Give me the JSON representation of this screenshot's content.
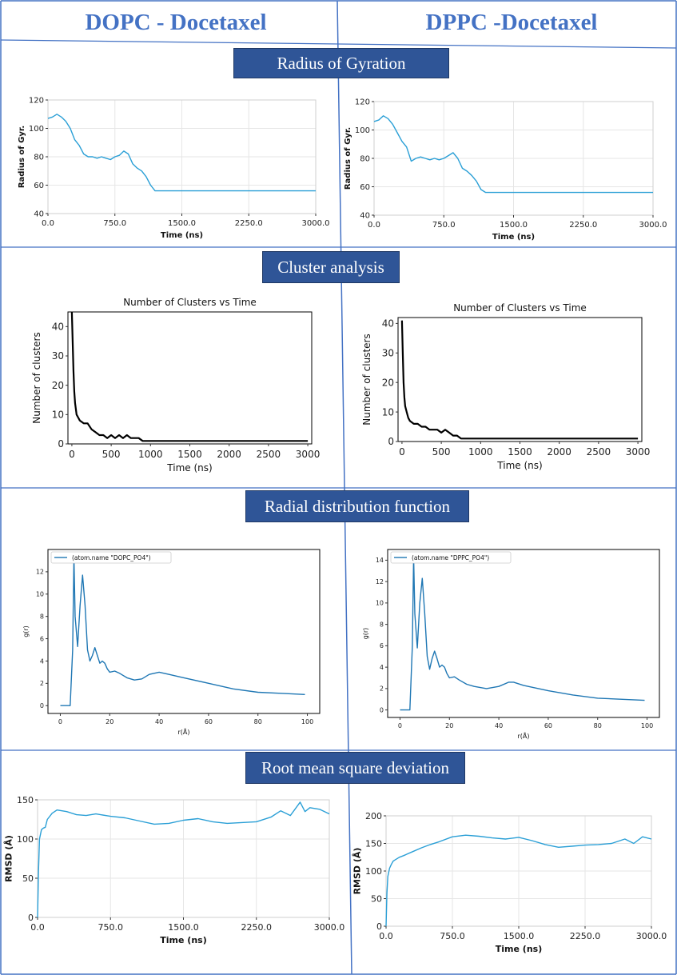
{
  "header": {
    "left_title": "DOPC - Docetaxel",
    "right_title": "DPPC -Docetaxel"
  },
  "sections": [
    {
      "label": "Radius of Gyration"
    },
    {
      "label": "Cluster analysis"
    },
    {
      "label": "Radial distribution function"
    },
    {
      "label": "Root mean square deviation"
    }
  ],
  "colors": {
    "title_blue": "#4472c4",
    "banner": "#2f5597",
    "line_blue": "#2a9fd6",
    "black": "#000000",
    "divider": "#4472c4"
  },
  "chart_data": [
    {
      "id": "rg-dopc",
      "type": "line",
      "title": "",
      "xlabel": "Time (ns)",
      "ylabel": "Radius of Gyr.",
      "xlim": [
        0,
        3000
      ],
      "ylim": [
        40,
        120
      ],
      "xticks": [
        0,
        750,
        1500,
        2250,
        3000
      ],
      "xtick_labels": [
        "0.0",
        "750.0",
        "1500.0",
        "2250.0",
        "3000.0"
      ],
      "yticks": [
        40,
        60,
        80,
        100,
        120
      ],
      "ytick_labels": [
        "40",
        "60",
        "80",
        "100",
        "120"
      ],
      "grid": true,
      "legend": "none",
      "series": [
        {
          "color": "#2a9fd6",
          "x": [
            0,
            50,
            100,
            150,
            200,
            250,
            300,
            350,
            400,
            450,
            500,
            550,
            600,
            650,
            700,
            750,
            800,
            850,
            900,
            950,
            1000,
            1050,
            1100,
            1150,
            1200,
            1500,
            2000,
            2500,
            3000
          ],
          "y": [
            107,
            108,
            110,
            108,
            105,
            100,
            92,
            88,
            82,
            80,
            80,
            79,
            80,
            79,
            78,
            80,
            81,
            84,
            82,
            75,
            72,
            70,
            66,
            60,
            56,
            56,
            56,
            56,
            56
          ]
        }
      ]
    },
    {
      "id": "rg-dppc",
      "type": "line",
      "title": "",
      "xlabel": "Time (ns)",
      "ylabel": "Radius of Gyr.",
      "xlim": [
        0,
        3000
      ],
      "ylim": [
        40,
        120
      ],
      "xticks": [
        0,
        750,
        1500,
        2250,
        3000
      ],
      "xtick_labels": [
        "0.0",
        "750.0",
        "1500.0",
        "2250.0",
        "3000.0"
      ],
      "yticks": [
        40,
        60,
        80,
        100,
        120
      ],
      "ytick_labels": [
        "40",
        "60",
        "80",
        "100",
        "120"
      ],
      "grid": true,
      "legend": "none",
      "series": [
        {
          "color": "#2a9fd6",
          "x": [
            0,
            50,
            100,
            150,
            200,
            250,
            300,
            350,
            400,
            450,
            500,
            550,
            600,
            650,
            700,
            750,
            800,
            850,
            900,
            950,
            1000,
            1050,
            1100,
            1150,
            1200,
            1500,
            2000,
            2500,
            3000
          ],
          "y": [
            106,
            107,
            110,
            108,
            104,
            98,
            92,
            88,
            78,
            80,
            81,
            80,
            79,
            80,
            79,
            80,
            82,
            84,
            80,
            73,
            71,
            68,
            64,
            58,
            56,
            56,
            56,
            56,
            56
          ]
        }
      ]
    },
    {
      "id": "cl-dopc",
      "type": "line",
      "title": "Number of Clusters vs Time",
      "xlabel": "Time (ns)",
      "ylabel": "Number of clusters",
      "xlim": [
        -50,
        3050
      ],
      "ylim": [
        0,
        45
      ],
      "xticks": [
        0,
        500,
        1000,
        1500,
        2000,
        2500,
        3000
      ],
      "xtick_labels": [
        "0",
        "500",
        "1000",
        "1500",
        "2000",
        "2500",
        "3000"
      ],
      "yticks": [
        0,
        10,
        20,
        30,
        40
      ],
      "ytick_labels": [
        "0",
        "10",
        "20",
        "30",
        "40"
      ],
      "grid": false,
      "legend": "none",
      "series": [
        {
          "color": "#000000",
          "x": [
            0,
            10,
            20,
            30,
            40,
            60,
            80,
            100,
            150,
            200,
            250,
            300,
            350,
            400,
            450,
            500,
            550,
            600,
            650,
            700,
            750,
            800,
            850,
            900,
            1000,
            1500,
            2000,
            2500,
            3000
          ],
          "y": [
            45,
            35,
            25,
            18,
            14,
            10,
            9,
            8,
            7,
            7,
            5,
            4,
            3,
            3,
            2,
            3,
            2,
            3,
            2,
            3,
            2,
            2,
            2,
            1,
            1,
            1,
            1,
            1,
            1
          ]
        }
      ]
    },
    {
      "id": "cl-dppc",
      "type": "line",
      "title": "Number of Clusters vs Time",
      "xlabel": "Time (ns)",
      "ylabel": "Number of clusters",
      "xlim": [
        -50,
        3050
      ],
      "ylim": [
        0,
        42
      ],
      "xticks": [
        0,
        500,
        1000,
        1500,
        2000,
        2500,
        3000
      ],
      "xtick_labels": [
        "0",
        "500",
        "1000",
        "1500",
        "2000",
        "2500",
        "3000"
      ],
      "yticks": [
        0,
        10,
        20,
        30,
        40
      ],
      "ytick_labels": [
        "0",
        "10",
        "20",
        "30",
        "40"
      ],
      "grid": false,
      "legend": "none",
      "series": [
        {
          "color": "#000000",
          "x": [
            0,
            10,
            20,
            30,
            40,
            60,
            80,
            100,
            150,
            200,
            250,
            300,
            350,
            400,
            450,
            500,
            550,
            600,
            650,
            700,
            750,
            1000,
            1500,
            2000,
            2500,
            3000
          ],
          "y": [
            41,
            30,
            20,
            15,
            12,
            10,
            8,
            7,
            6,
            6,
            5,
            5,
            4,
            4,
            4,
            3,
            4,
            3,
            2,
            2,
            1,
            1,
            1,
            1,
            1,
            1
          ]
        }
      ]
    },
    {
      "id": "rdf-dopc",
      "type": "line",
      "title": "",
      "xlabel": "r(Å)",
      "ylabel": "g(r)",
      "xlim": [
        -5,
        105
      ],
      "ylim": [
        -0.7,
        14
      ],
      "xticks": [
        0,
        20,
        40,
        60,
        80,
        100
      ],
      "xtick_labels": [
        "0",
        "20",
        "40",
        "60",
        "80",
        "100"
      ],
      "yticks": [
        0,
        2,
        4,
        6,
        8,
        10,
        12
      ],
      "ytick_labels": [
        "0",
        "2",
        "4",
        "6",
        "8",
        "10",
        "12"
      ],
      "grid": false,
      "legend": "top-left",
      "series": [
        {
          "name": "(atom.name \"DOPC_PO4\")",
          "color": "#1f77b4",
          "x": [
            0,
            4,
            5,
            5.5,
            6,
            7,
            8,
            9,
            10,
            11,
            12,
            13,
            14,
            15,
            16,
            17,
            18,
            19,
            20,
            22,
            24,
            27,
            30,
            33,
            36,
            40,
            44,
            50,
            60,
            70,
            80,
            90,
            99
          ],
          "y": [
            0,
            0,
            5,
            13.3,
            8,
            5.3,
            9,
            11.7,
            9,
            5,
            4,
            4.5,
            5.2,
            4.5,
            3.8,
            4,
            3.8,
            3.3,
            3,
            3.1,
            2.9,
            2.5,
            2.3,
            2.4,
            2.8,
            3,
            2.8,
            2.5,
            2,
            1.5,
            1.2,
            1.1,
            1.0
          ]
        }
      ]
    },
    {
      "id": "rdf-dppc",
      "type": "line",
      "title": "",
      "xlabel": "r(Å)",
      "ylabel": "g(r)",
      "xlim": [
        -5,
        105
      ],
      "ylim": [
        -0.7,
        15
      ],
      "xticks": [
        0,
        20,
        40,
        60,
        80,
        100
      ],
      "xtick_labels": [
        "0",
        "20",
        "40",
        "60",
        "80",
        "100"
      ],
      "yticks": [
        0,
        2,
        4,
        6,
        8,
        10,
        12,
        14
      ],
      "ytick_labels": [
        "0",
        "2",
        "4",
        "6",
        "8",
        "10",
        "12",
        "14"
      ],
      "grid": false,
      "legend": "top-left",
      "series": [
        {
          "name": "(atom.name \"DPPC_PO4\")",
          "color": "#1f77b4",
          "x": [
            0,
            4,
            5,
            5.5,
            6,
            7,
            8,
            9,
            10,
            11,
            12,
            13,
            14,
            15,
            16,
            17,
            18,
            19,
            20,
            22,
            24,
            27,
            30,
            35,
            40,
            44,
            46,
            50,
            60,
            70,
            80,
            90,
            99
          ],
          "y": [
            0,
            0,
            6,
            14.3,
            9,
            5.8,
            10,
            12.3,
            9,
            5,
            3.8,
            4.8,
            5.5,
            4.8,
            4,
            4.2,
            4,
            3.4,
            3,
            3.1,
            2.8,
            2.4,
            2.2,
            2,
            2.2,
            2.6,
            2.6,
            2.3,
            1.8,
            1.4,
            1.1,
            1,
            0.9
          ]
        }
      ]
    },
    {
      "id": "rmsd-dopc",
      "type": "line",
      "title": "",
      "xlabel": "Time (ns)",
      "ylabel": "RMSD (Å)",
      "xlim": [
        0,
        3000
      ],
      "ylim": [
        0,
        150
      ],
      "xticks": [
        0,
        750,
        1500,
        2250,
        3000
      ],
      "xtick_labels": [
        "0.0",
        "750.0",
        "1500.0",
        "2250.0",
        "3000.0"
      ],
      "yticks": [
        0,
        50,
        100,
        150
      ],
      "ytick_labels": [
        "0",
        "50",
        "100",
        "150"
      ],
      "grid": true,
      "legend": "none",
      "series": [
        {
          "color": "#2a9fd6",
          "x": [
            0,
            10,
            20,
            40,
            60,
            80,
            100,
            150,
            200,
            300,
            400,
            500,
            600,
            750,
            900,
            1050,
            1200,
            1350,
            1500,
            1650,
            1800,
            1950,
            2100,
            2250,
            2400,
            2500,
            2600,
            2700,
            2750,
            2800,
            2900,
            3000
          ],
          "y": [
            0,
            60,
            100,
            112,
            114,
            115,
            125,
            133,
            137,
            135,
            131,
            130,
            132,
            129,
            127,
            123,
            119,
            120,
            124,
            126,
            122,
            120,
            121,
            122,
            128,
            136,
            130,
            147,
            135,
            140,
            138,
            132
          ]
        }
      ]
    },
    {
      "id": "rmsd-dppc",
      "type": "line",
      "title": "",
      "xlabel": "Time (ns)",
      "ylabel": "RMSD (Å)",
      "xlim": [
        0,
        3000
      ],
      "ylim": [
        0,
        200
      ],
      "xticks": [
        0,
        750,
        1500,
        2250,
        3000
      ],
      "xtick_labels": [
        "0.0",
        "750.0",
        "1500.0",
        "2250.0",
        "3000.0"
      ],
      "yticks": [
        0,
        50,
        100,
        150,
        200
      ],
      "ytick_labels": [
        "0",
        "50",
        "100",
        "150",
        "200"
      ],
      "grid": true,
      "legend": "none",
      "series": [
        {
          "color": "#2a9fd6",
          "x": [
            0,
            10,
            20,
            40,
            60,
            80,
            100,
            150,
            200,
            300,
            400,
            500,
            600,
            750,
            900,
            1050,
            1200,
            1350,
            1500,
            1650,
            1800,
            1950,
            2100,
            2250,
            2400,
            2550,
            2700,
            2800,
            2900,
            3000
          ],
          "y": [
            0,
            60,
            90,
            105,
            112,
            118,
            120,
            125,
            128,
            135,
            142,
            148,
            153,
            162,
            165,
            163,
            160,
            158,
            161,
            155,
            148,
            143,
            145,
            147,
            148,
            150,
            158,
            150,
            162,
            158
          ]
        }
      ]
    }
  ]
}
